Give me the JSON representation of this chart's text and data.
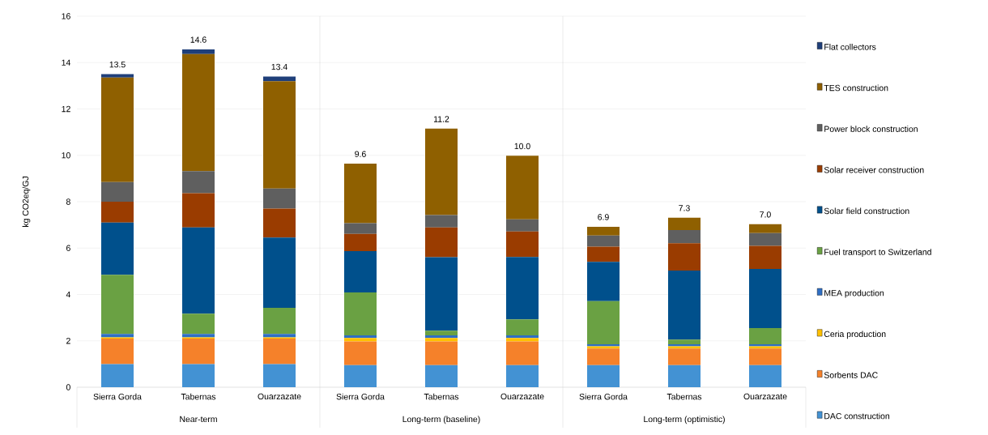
{
  "chart_data": {
    "type": "bar",
    "stacked": true,
    "ylabel": "kg CO2eq/GJ",
    "categories": [
      "Sierra Gorda",
      "Tabernas",
      "Ouarzazate",
      "Sierra Gorda",
      "Tabernas",
      "Ouarzazate",
      "Sierra Gorda",
      "Tabernas",
      "Ouarzazate"
    ],
    "series": [
      {
        "name": "DAC construction",
        "color": "#4392d3",
        "values": [
          1.0,
          1.0,
          1.0,
          0.95,
          0.95,
          0.95,
          0.95,
          0.95,
          0.95
        ]
      },
      {
        "name": "Sorbents DAC",
        "color": "#f5812a",
        "values": [
          1.1,
          1.1,
          1.1,
          1.02,
          1.02,
          1.02,
          0.72,
          0.72,
          0.72
        ]
      },
      {
        "name": "Ceria production",
        "color": "#ffc000",
        "values": [
          0.05,
          0.05,
          0.05,
          0.15,
          0.15,
          0.15,
          0.09,
          0.09,
          0.09
        ]
      },
      {
        "name": "MEA production",
        "color": "#2f6fc4",
        "values": [
          0.15,
          0.15,
          0.15,
          0.12,
          0.12,
          0.12,
          0.09,
          0.09,
          0.09
        ]
      },
      {
        "name": "Fuel transport to Switzerland",
        "color": "#6aa143",
        "values": [
          2.55,
          0.87,
          1.12,
          1.85,
          0.2,
          0.69,
          1.86,
          0.2,
          0.7
        ]
      },
      {
        "name": "Solar field construction",
        "color": "#00508c",
        "values": [
          2.25,
          3.72,
          3.03,
          1.78,
          3.17,
          2.69,
          1.7,
          2.98,
          2.55
        ]
      },
      {
        "name": "Solar receiver construction",
        "color": "#9a3c00",
        "values": [
          0.9,
          1.48,
          1.25,
          0.74,
          1.28,
          1.1,
          0.65,
          1.18,
          1.0
        ]
      },
      {
        "name": "Power block construction",
        "color": "#5f5f5f",
        "values": [
          0.85,
          0.95,
          0.87,
          0.46,
          0.53,
          0.52,
          0.48,
          0.57,
          0.55
        ]
      },
      {
        "name": "TES construction",
        "color": "#8f6000",
        "values": [
          4.5,
          5.05,
          4.63,
          2.57,
          3.73,
          2.74,
          0.38,
          0.53,
          0.38
        ]
      },
      {
        "name": "Flat collectors",
        "color": "#1f3f7a",
        "values": [
          0.15,
          0.2,
          0.2,
          0,
          0,
          0,
          0,
          0,
          0
        ]
      }
    ],
    "totals": [
      "13.5",
      "14.6",
      "13.4",
      "9.6",
      "11.2",
      "10.0",
      "6.9",
      "7.3",
      "7.0"
    ],
    "annotations": [
      "Near-term",
      "Long-term (baseline)",
      "Long-term (optimistic)"
    ],
    "ylim": [
      0,
      16
    ],
    "yticks": [
      0,
      2,
      4,
      6,
      8,
      10,
      12,
      14,
      16
    ],
    "grid": "y",
    "legend": "right"
  }
}
